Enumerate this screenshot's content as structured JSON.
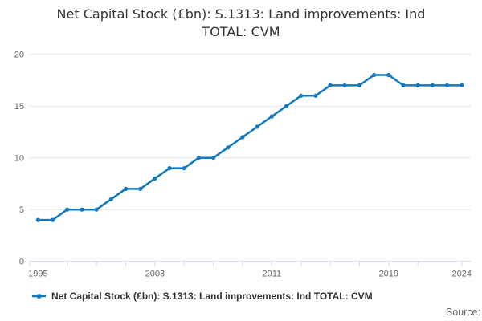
{
  "title": {
    "line1": "Net Capital Stock (£bn): S.1313: Land improvements: Ind",
    "line2": "TOTAL: CVM"
  },
  "legend": {
    "items": [
      {
        "label": "Net Capital Stock (£bn): S.1313: Land improvements: Ind TOTAL: CVM",
        "color": "#1178bd"
      }
    ]
  },
  "footer": {
    "source_label": "Source:"
  },
  "colors": {
    "line": "#1178bd",
    "marker": "#1178bd",
    "grid": "#e6e6e6",
    "axis_line": "#ccd6eb",
    "tick_label": "#666666",
    "title_text": "#333333",
    "legend_text": "#333333",
    "source_text": "#666666"
  },
  "chart_data": {
    "type": "line",
    "title": "Net Capital Stock (£bn): S.1313: Land improvements: Ind TOTAL: CVM",
    "x": [
      1995,
      1996,
      1997,
      1998,
      1999,
      2000,
      2001,
      2002,
      2003,
      2004,
      2005,
      2006,
      2007,
      2008,
      2009,
      2010,
      2011,
      2012,
      2013,
      2014,
      2015,
      2016,
      2017,
      2018,
      2019,
      2020,
      2021,
      2022,
      2023,
      2024
    ],
    "series": [
      {
        "name": "Net Capital Stock (£bn): S.1313: Land improvements: Ind TOTAL: CVM",
        "values": [
          4,
          4,
          5,
          5,
          5,
          6,
          7,
          7,
          8,
          9,
          9,
          10,
          10,
          11,
          12,
          13,
          14,
          15,
          16,
          16,
          17,
          17,
          17,
          18,
          18,
          17,
          17,
          17,
          17,
          17
        ]
      }
    ],
    "xlabel": "",
    "ylabel": "",
    "xlim": [
      1994.43,
      2024.62
    ],
    "ylim": [
      0,
      20
    ],
    "yticks": [
      {
        "value": 0,
        "label": "0"
      },
      {
        "value": 5,
        "label": "5"
      },
      {
        "value": 10,
        "label": "10"
      },
      {
        "value": 15,
        "label": "15"
      },
      {
        "value": 20,
        "label": "20"
      }
    ],
    "xtick_marks": [
      1994.43,
      1997,
      1999,
      2001,
      2003,
      2005,
      2007,
      2009,
      2011,
      2013,
      2015,
      2017,
      2019,
      2021,
      2024
    ],
    "xtick_labels": [
      {
        "value": 1995,
        "label": "1995"
      },
      {
        "value": 2003,
        "label": "2003"
      },
      {
        "value": 2011,
        "label": "2011"
      },
      {
        "value": 2019,
        "label": "2019"
      },
      {
        "value": 2024,
        "label": "2024"
      }
    ],
    "grid": "horizontal",
    "legend_position": "bottom-left",
    "marker": "dot"
  }
}
